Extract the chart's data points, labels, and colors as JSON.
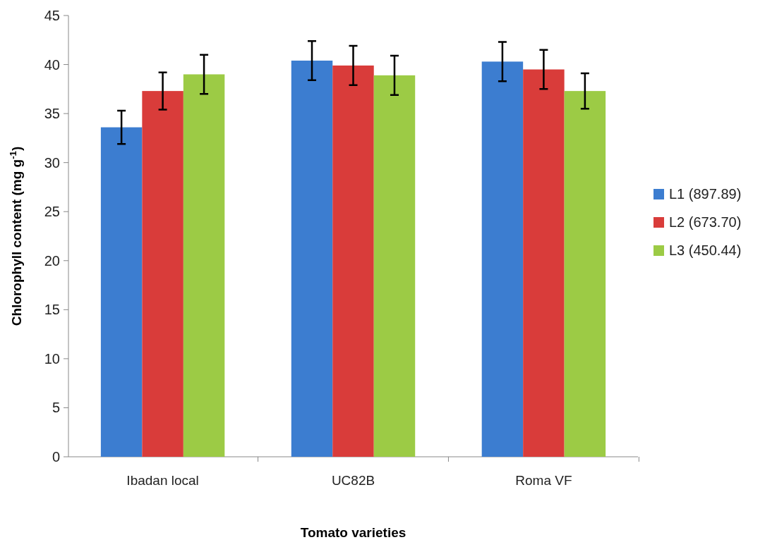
{
  "chart_data": {
    "type": "bar",
    "xlabel": "Tomato varieties",
    "ylabel": "Chlorophyll content (mg g$^{-1}$)",
    "categories": [
      "Ibadan local",
      "UC82B",
      "Roma VF"
    ],
    "series": [
      {
        "name": "L1 (897.89)",
        "color": "#3c7dd0",
        "values": [
          33.6,
          40.4,
          40.3
        ],
        "errors": [
          1.7,
          2.0,
          2.0
        ]
      },
      {
        "name": "L2 (673.70)",
        "color": "#d93c3a",
        "values": [
          37.3,
          39.9,
          39.5
        ],
        "errors": [
          1.9,
          2.0,
          2.0
        ]
      },
      {
        "name": "L3 (450.44)",
        "color": "#9ccb45",
        "values": [
          39.0,
          38.9,
          37.3
        ],
        "errors": [
          2.0,
          2.0,
          1.8
        ]
      }
    ],
    "ylim": [
      0,
      45
    ],
    "yticks": [
      0,
      5,
      10,
      15,
      20,
      25,
      30,
      35,
      40,
      45
    ],
    "grid": false,
    "legend": "right"
  }
}
